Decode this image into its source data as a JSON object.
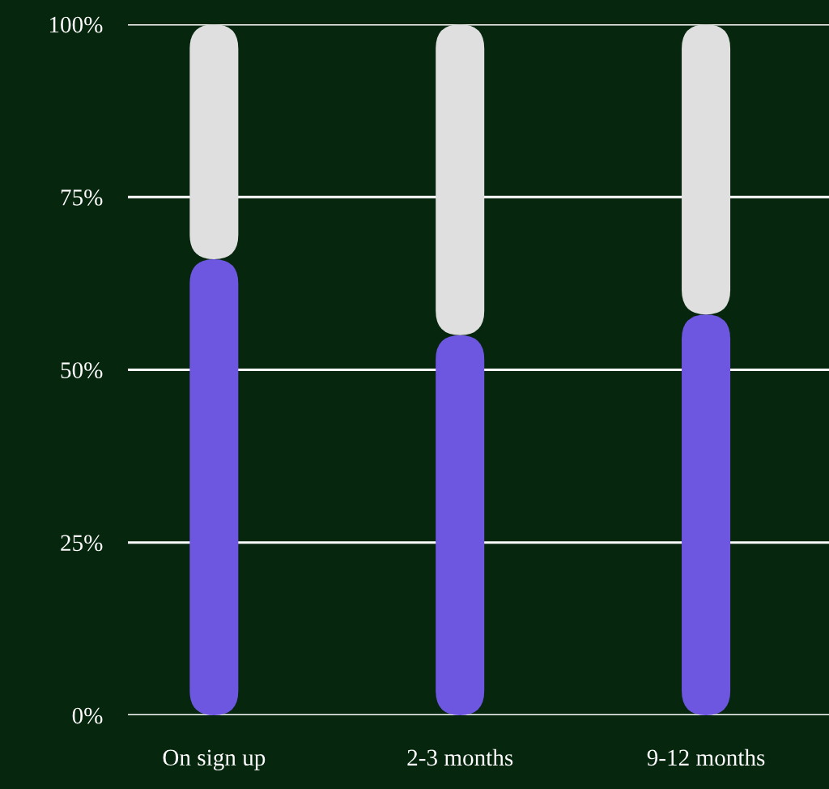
{
  "chart_data": {
    "type": "bar",
    "stacked": true,
    "categories": [
      "On sign up",
      "2-3 months",
      "9-12 months"
    ],
    "series": [
      {
        "color": "#6e57e0",
        "values": [
          66,
          55,
          58
        ]
      },
      {
        "color": "#e0dfe0",
        "values": [
          34,
          45,
          42
        ]
      }
    ],
    "ylim": [
      0,
      100
    ],
    "yticks": [
      {
        "value": 0,
        "label": "0%"
      },
      {
        "value": 25,
        "label": "25%"
      },
      {
        "value": 50,
        "label": "50%"
      },
      {
        "value": 75,
        "label": "75%"
      },
      {
        "value": 100,
        "label": "100%"
      }
    ],
    "grid": "y"
  }
}
